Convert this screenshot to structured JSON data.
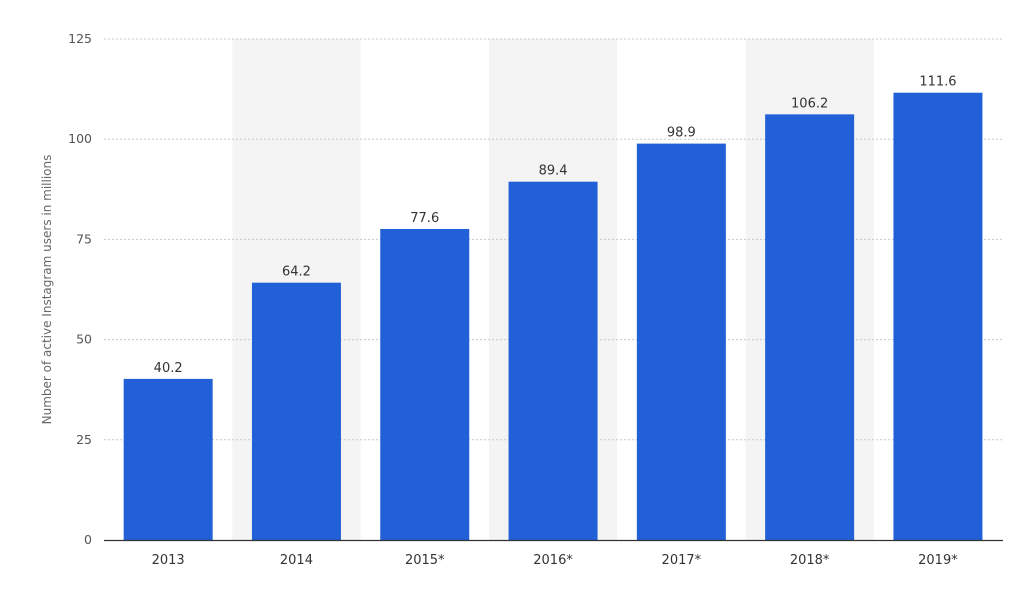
{
  "chart_data": {
    "type": "bar",
    "title": "",
    "xlabel": "",
    "ylabel": "Number of active Instagram users in millions",
    "categories": [
      "2013",
      "2014",
      "2015*",
      "2016*",
      "2017*",
      "2018*",
      "2019*"
    ],
    "values": [
      40.2,
      64.2,
      77.6,
      89.4,
      98.9,
      106.2,
      111.6
    ],
    "value_labels": [
      "40.2",
      "64.2",
      "77.6",
      "89.4",
      "98.9",
      "106.2",
      "111.6"
    ],
    "ylim": [
      0,
      125
    ],
    "yticks": [
      0,
      25,
      50,
      75,
      100,
      125
    ],
    "grid": "horizontal dotted",
    "alternating_column_shading": true,
    "legend": "none",
    "colors": {
      "bar": "#2160d6",
      "grid": "#c8c8c8",
      "band": "#f4f4f4",
      "axis": "#333333"
    }
  }
}
